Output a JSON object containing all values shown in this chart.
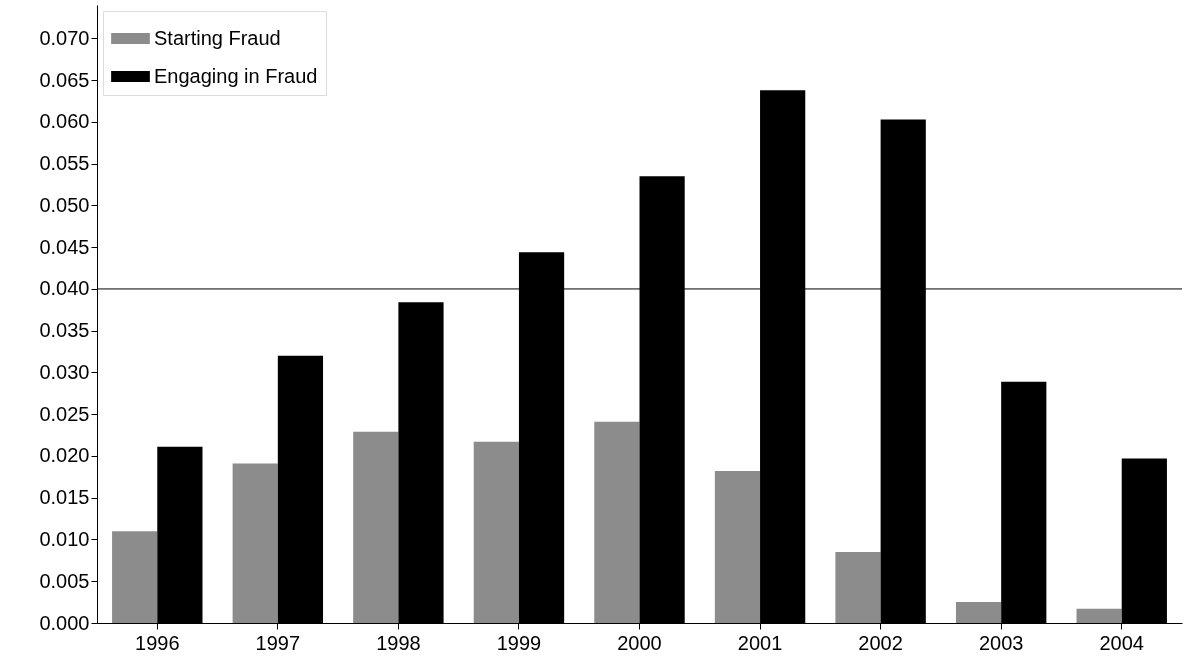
{
  "chart_data": {
    "type": "bar",
    "categories": [
      "1996",
      "1997",
      "1998",
      "1999",
      "2000",
      "2001",
      "2002",
      "2003",
      "2004"
    ],
    "series": [
      {
        "name": "Starting Fraud",
        "color": "#8c8c8c",
        "values": [
          0.011,
          0.0191,
          0.0229,
          0.0217,
          0.0241,
          0.0182,
          0.0085,
          0.0025,
          0.0017
        ]
      },
      {
        "name": "Engaging in Fraud",
        "color": "#000000",
        "values": [
          0.0211,
          0.032,
          0.0384,
          0.0444,
          0.0535,
          0.0638,
          0.0603,
          0.0289,
          0.0197
        ]
      }
    ],
    "ylim": [
      0,
      0.074
    ],
    "yticks": [
      {
        "value": 0,
        "label": "0.000"
      },
      {
        "value": 0.005,
        "label": "0.005"
      },
      {
        "value": 0.01,
        "label": "0.010"
      },
      {
        "value": 0.015,
        "label": "0.015"
      },
      {
        "value": 0.02,
        "label": "0.020"
      },
      {
        "value": 0.025,
        "label": "0.025"
      },
      {
        "value": 0.03,
        "label": "0.030"
      },
      {
        "value": 0.035,
        "label": "0.035"
      },
      {
        "value": 0.04,
        "label": "0.040"
      },
      {
        "value": 0.045,
        "label": "0.045"
      },
      {
        "value": 0.05,
        "label": "0.050"
      },
      {
        "value": 0.055,
        "label": "0.055"
      },
      {
        "value": 0.06,
        "label": "0.060"
      },
      {
        "value": 0.065,
        "label": "0.065"
      },
      {
        "value": 0.07,
        "label": "0.070"
      }
    ],
    "ref_lines": [
      {
        "axis": "y",
        "value": 0.04,
        "color": "#000000"
      }
    ],
    "legend": "top left",
    "grid": false
  }
}
